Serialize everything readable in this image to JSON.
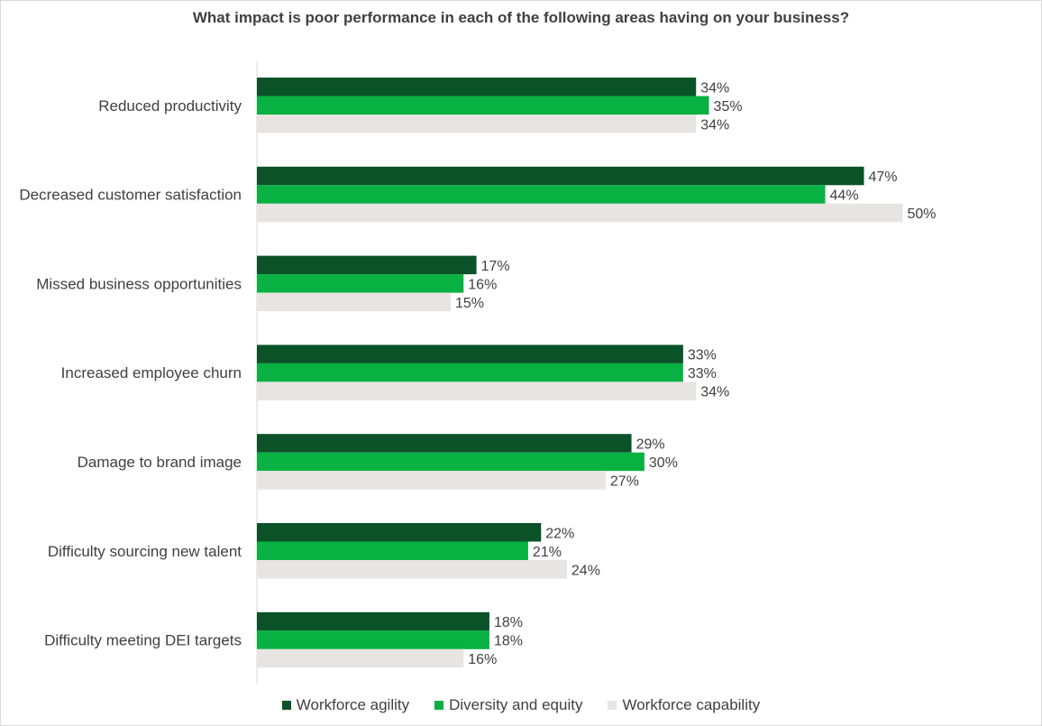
{
  "chart_data": {
    "type": "bar",
    "orientation": "horizontal",
    "title": "What impact is poor performance in each of the following areas having on your business?",
    "categories": [
      "Reduced productivity",
      "Decreased customer satisfaction",
      "Missed business opportunities",
      "Increased employee churn",
      "Damage to brand image",
      "Difficulty sourcing new talent",
      "Difficulty meeting DEI targets"
    ],
    "series": [
      {
        "name": "Workforce agility",
        "color": "#0b5229",
        "values": [
          34,
          47,
          17,
          33,
          29,
          22,
          18
        ],
        "labels": [
          "34%",
          "47%",
          "17%",
          "33%",
          "29%",
          "22%",
          "18%"
        ]
      },
      {
        "name": "Diversity and equity",
        "color": "#09b143",
        "values": [
          35,
          44,
          16,
          33,
          30,
          21,
          18
        ],
        "labels": [
          "35%",
          "44%",
          "16%",
          "33%",
          "30%",
          "21%",
          "18%"
        ]
      },
      {
        "name": "Workforce capability",
        "color": "#e8e4e1",
        "values": [
          34,
          50,
          15,
          34,
          27,
          24,
          16
        ],
        "labels": [
          "34%",
          "50%",
          "15%",
          "34%",
          "27%",
          "24%",
          "16%"
        ]
      }
    ],
    "xlim": [
      0,
      50
    ],
    "grid": false,
    "legend_position": "bottom"
  }
}
